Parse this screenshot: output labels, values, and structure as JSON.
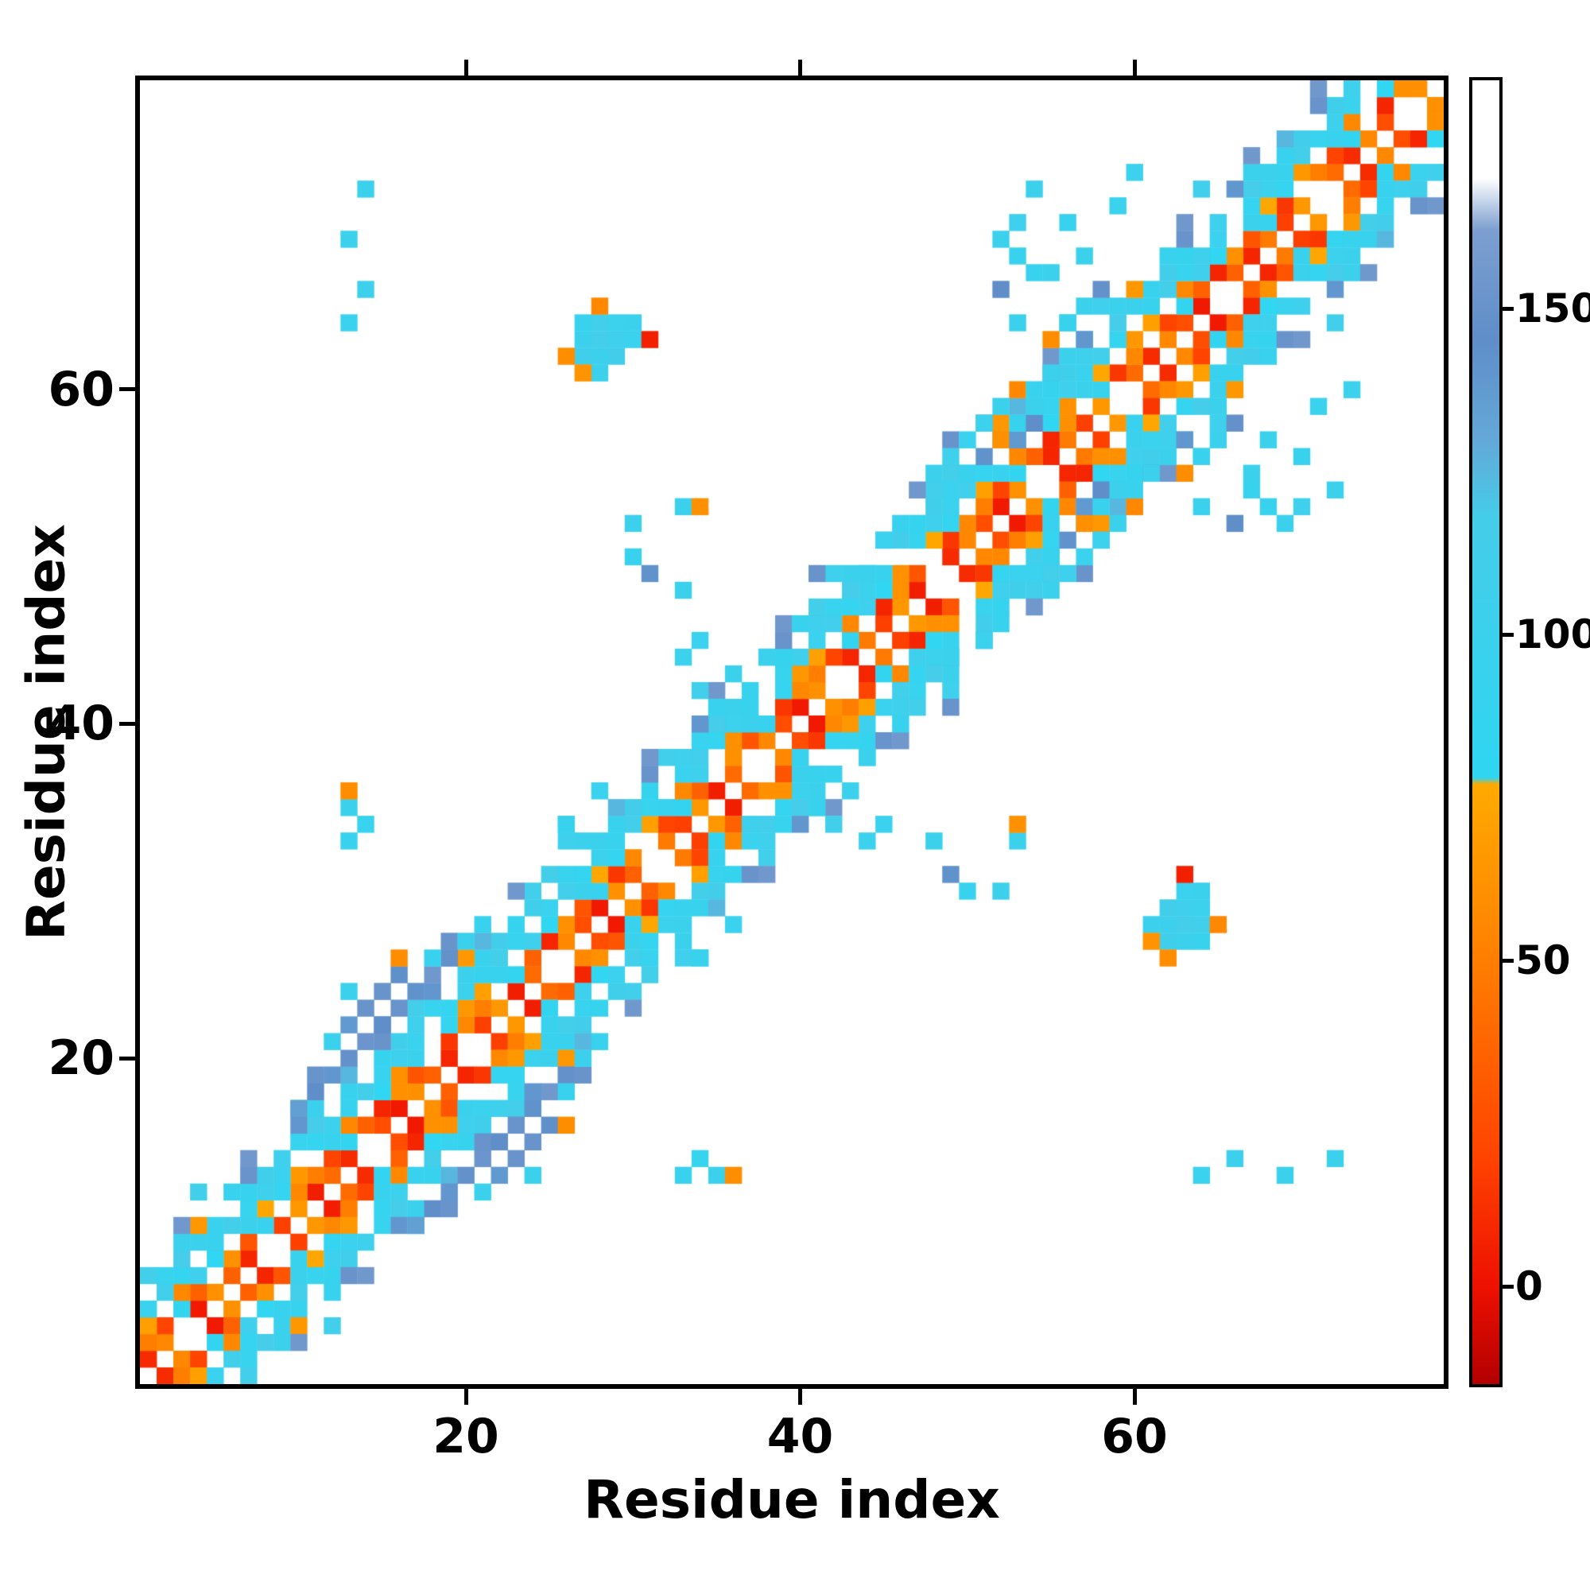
{
  "axes": {
    "x_label": "Residue index",
    "y_label": "Residue index",
    "x_ticks": [
      20,
      40,
      60
    ],
    "y_ticks": [
      20,
      40,
      60
    ]
  },
  "colorbar": {
    "ticks": [
      0,
      50,
      100,
      150
    ],
    "vmin": -15,
    "vmax": 185
  },
  "chart_data": {
    "type": "heatmap",
    "title": "",
    "xlabel": "Residue index",
    "ylabel": "Residue index",
    "n": 78,
    "xlim": [
      1,
      78
    ],
    "ylim": [
      1,
      78
    ],
    "symmetric": true,
    "grid": false,
    "legend": "colorbar-right",
    "colormap_stops": [
      [
        -15,
        "#b30000"
      ],
      [
        0,
        "#ee1100"
      ],
      [
        20,
        "#ff4400"
      ],
      [
        55,
        "#ff8800"
      ],
      [
        77,
        "#ffaa00"
      ],
      [
        78,
        "#2fd6f2"
      ],
      [
        118,
        "#45cde9"
      ],
      [
        130,
        "#64a8d8"
      ],
      [
        145,
        "#5f8ec9"
      ],
      [
        162,
        "#7d9fd0"
      ],
      [
        170,
        "#ffffff"
      ],
      [
        185,
        "#ffffff"
      ]
    ],
    "bands": [
      {
        "offset": 1,
        "values": [
          10,
          55,
          25,
          3,
          60,
          35,
          8,
          48,
          18,
          65,
          5,
          40
        ],
        "mask": [
          1,
          1,
          0,
          1,
          1,
          1,
          1,
          0,
          1,
          1,
          1,
          1,
          1,
          0,
          1,
          1,
          1
        ]
      },
      {
        "offset": 2,
        "values": [
          50,
          20,
          85,
          35,
          8,
          60,
          28,
          95,
          15,
          55
        ],
        "mask": [
          1,
          1,
          1,
          1,
          0,
          1,
          1,
          1,
          0,
          1,
          1,
          1,
          1
        ]
      },
      {
        "offset": 3,
        "values": [
          70,
          95,
          55,
          105,
          80,
          60,
          100,
          75,
          88,
          65
        ],
        "mask": [
          1,
          0,
          1,
          1,
          1,
          0,
          1,
          1,
          1,
          1,
          0,
          1
        ]
      },
      {
        "offset": 4,
        "values": [
          98,
          110,
          88,
          102,
          95,
          115,
          92,
          105
        ],
        "mask": [
          1,
          1,
          1,
          0,
          1,
          1,
          1,
          1,
          1,
          0,
          1,
          1,
          1,
          1
        ]
      },
      {
        "offset": 5,
        "values": [
          105,
          92,
          118,
          100,
          96,
          112,
          90,
          108
        ],
        "mask": [
          0,
          1,
          1,
          1,
          1,
          0,
          1,
          1,
          1,
          1,
          1,
          0,
          1
        ]
      },
      {
        "offset": 6,
        "values": [
          115,
          140,
          100,
          65,
          125,
          95,
          150,
          110
        ],
        "mask": [
          1,
          0,
          1,
          1,
          0,
          1,
          1,
          0,
          0,
          1,
          1,
          0,
          1,
          0
        ]
      },
      {
        "offset": 7,
        "values": [
          145,
          105,
          155,
          120
        ],
        "mask": [
          0,
          0,
          1,
          0,
          0,
          0,
          1,
          0,
          0,
          1,
          0,
          0,
          0,
          0,
          1,
          0
        ]
      },
      {
        "offset": 8,
        "values": [
          150,
          110
        ],
        "mask": [
          0,
          0,
          0,
          1,
          0,
          0,
          0,
          0,
          0,
          0,
          1,
          0,
          0,
          0,
          0
        ]
      }
    ],
    "clusters": [
      [
        62,
        27,
        108
      ],
      [
        62,
        28,
        104
      ],
      [
        62,
        29,
        112
      ],
      [
        63,
        27,
        100
      ],
      [
        63,
        28,
        115
      ],
      [
        63,
        29,
        105
      ],
      [
        63,
        30,
        98
      ],
      [
        64,
        27,
        96
      ],
      [
        64,
        28,
        110
      ],
      [
        64,
        29,
        102
      ],
      [
        61,
        28,
        100
      ],
      [
        65,
        28,
        55
      ],
      [
        63,
        31,
        6
      ],
      [
        61,
        27,
        62
      ],
      [
        64,
        30,
        100
      ],
      [
        62,
        26,
        58
      ],
      [
        18,
        11,
        145
      ],
      [
        19,
        12,
        140
      ],
      [
        20,
        13,
        148
      ],
      [
        21,
        14,
        152
      ],
      [
        22,
        15,
        145
      ],
      [
        23,
        16,
        150
      ],
      [
        24,
        17,
        142
      ],
      [
        25,
        18,
        155
      ],
      [
        26,
        19,
        148
      ],
      [
        22,
        13,
        138
      ],
      [
        23,
        14,
        150
      ],
      [
        24,
        15,
        150
      ],
      [
        25,
        16,
        144
      ],
      [
        26,
        18,
        96
      ],
      [
        27,
        20,
        100
      ],
      [
        28,
        21,
        95
      ],
      [
        21,
        12,
        100
      ],
      [
        17,
        10,
        135
      ],
      [
        24,
        13,
        100
      ],
      [
        26,
        16,
        58
      ],
      [
        54,
        49,
        98
      ],
      [
        55,
        48,
        100
      ],
      [
        55,
        50,
        95
      ],
      [
        56,
        49,
        105
      ],
      [
        56,
        51,
        142
      ],
      [
        57,
        50,
        98
      ],
      [
        57,
        52,
        60
      ],
      [
        57,
        53,
        138
      ],
      [
        58,
        51,
        102
      ],
      [
        58,
        53,
        96
      ],
      [
        58,
        54,
        145
      ],
      [
        59,
        52,
        100
      ],
      [
        59,
        54,
        100
      ],
      [
        60,
        53,
        55
      ],
      [
        60,
        54,
        95
      ],
      [
        61,
        55,
        100
      ],
      [
        57,
        63,
        140
      ],
      [
        57,
        65,
        100
      ],
      [
        56,
        64,
        95
      ],
      [
        58,
        66,
        148
      ],
      [
        57,
        68,
        100
      ],
      [
        55,
        63,
        58
      ],
      [
        53,
        64,
        100
      ],
      [
        52,
        66,
        145
      ],
      [
        54,
        67,
        96
      ],
      [
        56,
        62,
        100
      ],
      [
        69,
        52,
        100
      ],
      [
        70,
        53,
        106
      ],
      [
        68,
        53,
        96
      ],
      [
        72,
        54,
        100
      ],
      [
        71,
        59,
        98
      ],
      [
        73,
        60,
        102
      ],
      [
        67,
        55,
        100
      ],
      [
        70,
        56,
        95
      ],
      [
        69,
        13,
        100
      ],
      [
        66,
        14,
        104
      ],
      [
        64,
        13,
        98
      ],
      [
        35,
        13,
        100
      ],
      [
        33,
        13,
        96
      ],
      [
        34,
        14,
        92
      ],
      [
        44,
        33,
        102
      ],
      [
        45,
        34,
        98
      ],
      [
        48,
        33,
        100
      ],
      [
        49,
        31,
        142
      ],
      [
        50,
        30,
        96
      ],
      [
        52,
        30,
        104
      ],
      [
        53,
        33,
        100
      ],
      [
        36,
        28,
        98
      ],
      [
        34,
        26,
        94
      ],
      [
        43,
        36,
        100
      ],
      [
        41,
        35,
        96
      ],
      [
        44,
        38,
        100
      ],
      [
        14,
        72,
        100
      ],
      [
        46,
        40,
        95
      ],
      [
        49,
        44,
        100
      ],
      [
        51,
        45,
        98
      ],
      [
        53,
        34,
        60
      ],
      [
        36,
        13,
        58
      ]
    ]
  }
}
